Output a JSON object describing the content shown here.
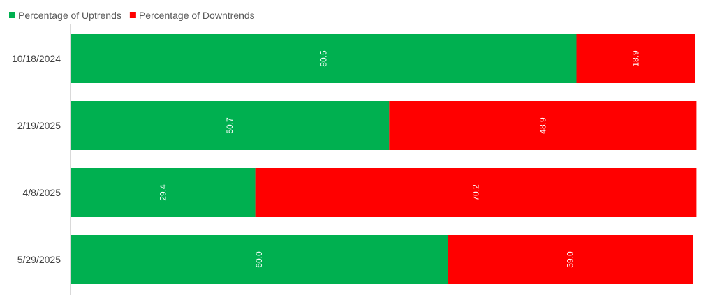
{
  "chart_data": {
    "type": "bar",
    "orientation": "horizontal",
    "stacked": true,
    "categories": [
      "10/18/2024",
      "2/19/2025",
      "4/8/2025",
      "5/29/2025"
    ],
    "series": [
      {
        "name": "Percentage of Uptrends",
        "color": "#00b050",
        "values": [
          80.5,
          50.7,
          29.4,
          60.0
        ],
        "labels": [
          "80.5",
          "50.7",
          "29.4",
          "60.0"
        ]
      },
      {
        "name": "Percentage of Downtrends",
        "color": "#ff0000",
        "values": [
          18.9,
          48.9,
          70.2,
          39.0
        ],
        "labels": [
          "18.9",
          "48.9",
          "70.2",
          "39.0"
        ]
      }
    ],
    "xlim": [
      0,
      100
    ],
    "legend_position": "top-left",
    "grid": false,
    "data_label_rotation": "vertical"
  }
}
